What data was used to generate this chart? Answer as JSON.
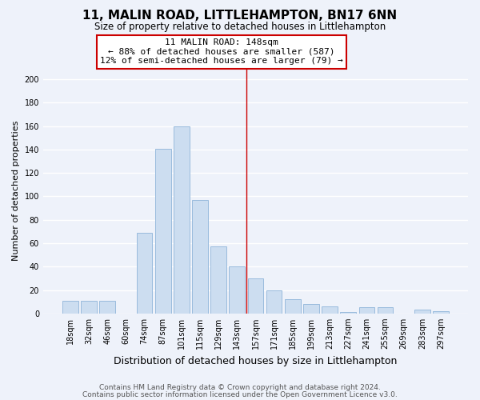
{
  "title": "11, MALIN ROAD, LITTLEHAMPTON, BN17 6NN",
  "subtitle": "Size of property relative to detached houses in Littlehampton",
  "xlabel": "Distribution of detached houses by size in Littlehampton",
  "ylabel": "Number of detached properties",
  "bar_color": "#ccddf0",
  "bar_edge_color": "#99bbdd",
  "categories": [
    "18sqm",
    "32sqm",
    "46sqm",
    "60sqm",
    "74sqm",
    "87sqm",
    "101sqm",
    "115sqm",
    "129sqm",
    "143sqm",
    "157sqm",
    "171sqm",
    "185sqm",
    "199sqm",
    "213sqm",
    "227sqm",
    "241sqm",
    "255sqm",
    "269sqm",
    "283sqm",
    "297sqm"
  ],
  "values": [
    11,
    11,
    11,
    0,
    69,
    141,
    160,
    97,
    57,
    40,
    30,
    20,
    12,
    8,
    6,
    1,
    5,
    5,
    0,
    3,
    2
  ],
  "ylim": [
    0,
    210
  ],
  "yticks": [
    0,
    20,
    40,
    60,
    80,
    100,
    120,
    140,
    160,
    180,
    200
  ],
  "vline_x": 9.5,
  "vline_color": "#cc0000",
  "annotation_line1": "11 MALIN ROAD: 148sqm",
  "annotation_line2": "← 88% of detached houses are smaller (587)",
  "annotation_line3": "12% of semi-detached houses are larger (79) →",
  "footer1": "Contains HM Land Registry data © Crown copyright and database right 2024.",
  "footer2": "Contains public sector information licensed under the Open Government Licence v3.0.",
  "background_color": "#eef2fa",
  "grid_color": "#ffffff",
  "title_fontsize": 11,
  "subtitle_fontsize": 8.5,
  "xlabel_fontsize": 9,
  "ylabel_fontsize": 8,
  "tick_fontsize": 7,
  "annotation_fontsize": 8,
  "footer_fontsize": 6.5
}
